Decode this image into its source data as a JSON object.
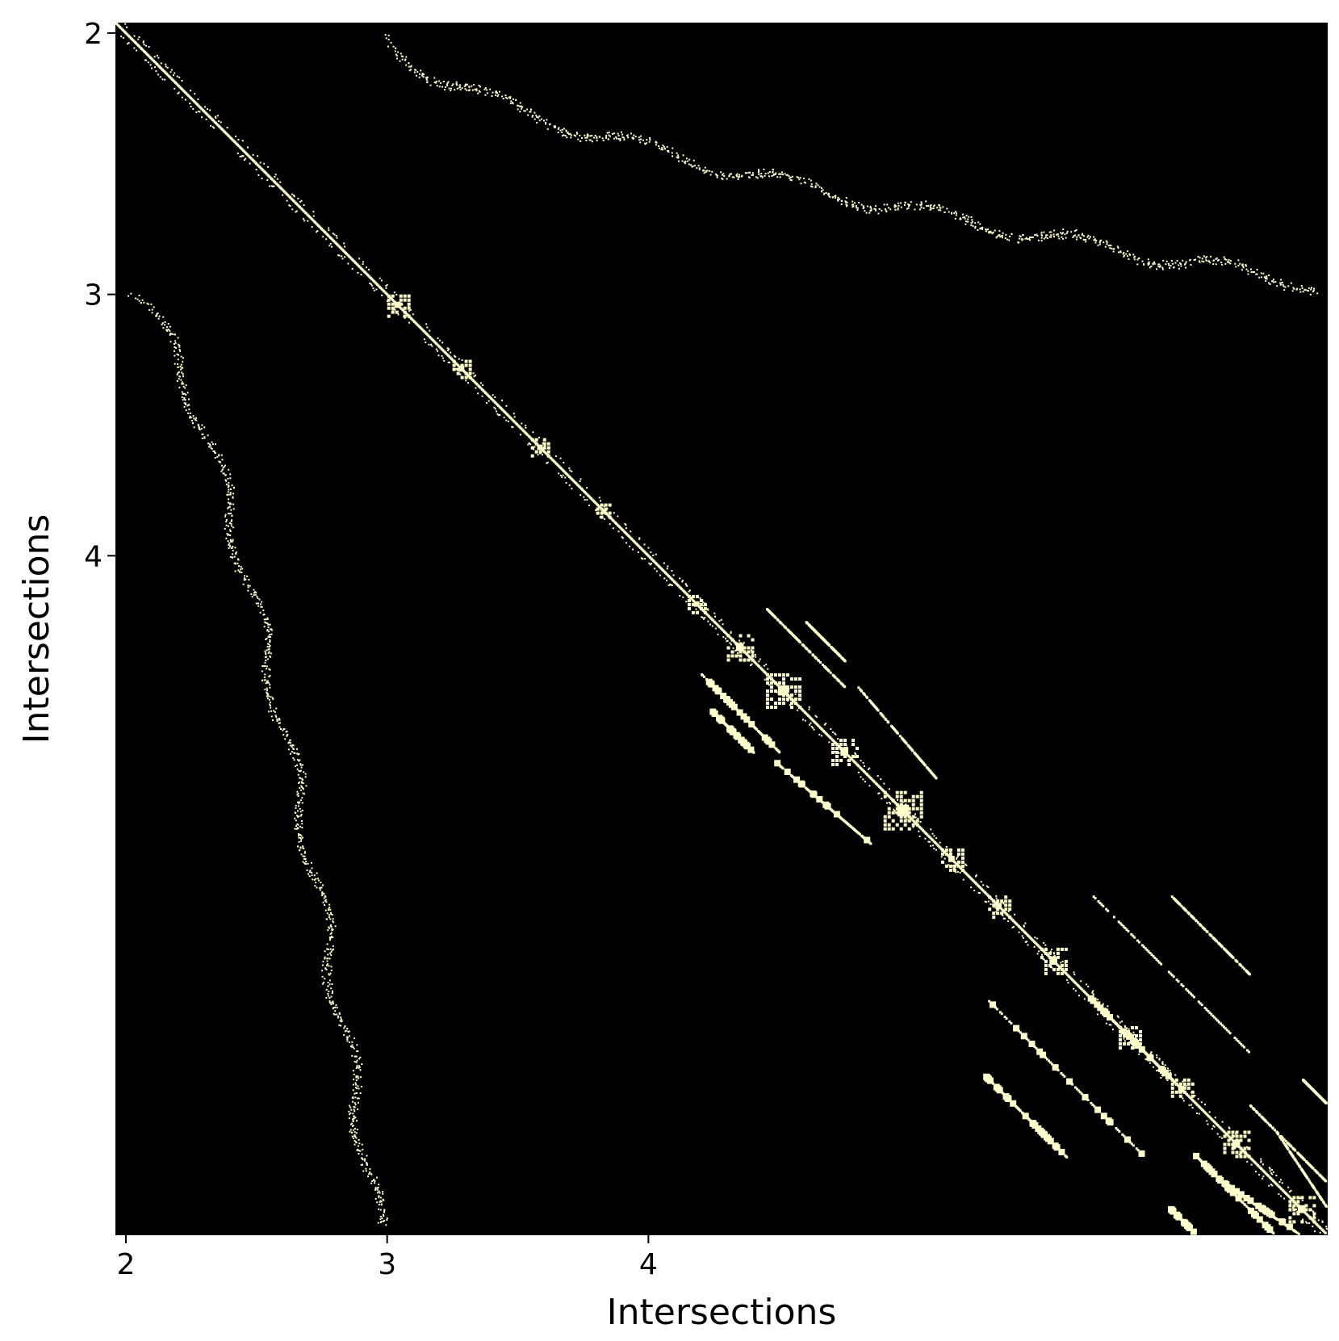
{
  "chart_data": {
    "type": "heatmap",
    "xlabel": "Intersections",
    "ylabel": "Intersections",
    "xlim": [
      1.96,
      6.6
    ],
    "ylim": [
      6.6,
      1.96
    ],
    "x_ticks": [
      2,
      3,
      4
    ],
    "y_ticks": [
      2,
      3,
      4
    ],
    "x_tick_labels": [
      "2",
      "3",
      "4"
    ],
    "y_tick_labels": [
      "2",
      "3",
      "4"
    ],
    "grid": false,
    "colors": {
      "background": "#000000",
      "cell": "#FFFFCC"
    },
    "pattern": "Sparse symmetric adjacency matrix between intersections: a dense block-diagonal band from (2,2) to the bottom-right corner, a curved band of cells in the upper-right region (rows 2–4, columns 3–6.6) mirrored by a curved band in the lower-left region (columns 2–4, rows 3–6.6), and repeated block-diagonal sub-bands in the lower-right quadrant.",
    "diagonal_blocks": [
      {
        "from": 3.0,
        "to": 3.08
      },
      {
        "from": 3.25,
        "to": 3.32
      },
      {
        "from": 3.55,
        "to": 3.62
      },
      {
        "from": 3.8,
        "to": 3.86
      },
      {
        "from": 4.15,
        "to": 4.22
      },
      {
        "from": 4.3,
        "to": 4.4
      },
      {
        "from": 4.45,
        "to": 4.58
      },
      {
        "from": 4.7,
        "to": 4.8
      },
      {
        "from": 4.9,
        "to": 5.05
      },
      {
        "from": 5.12,
        "to": 5.2
      },
      {
        "from": 5.3,
        "to": 5.38
      },
      {
        "from": 5.5,
        "to": 5.6
      },
      {
        "from": 5.8,
        "to": 5.88
      },
      {
        "from": 6.0,
        "to": 6.08
      },
      {
        "from": 6.2,
        "to": 6.3
      },
      {
        "from": 6.45,
        "to": 6.55
      }
    ]
  }
}
